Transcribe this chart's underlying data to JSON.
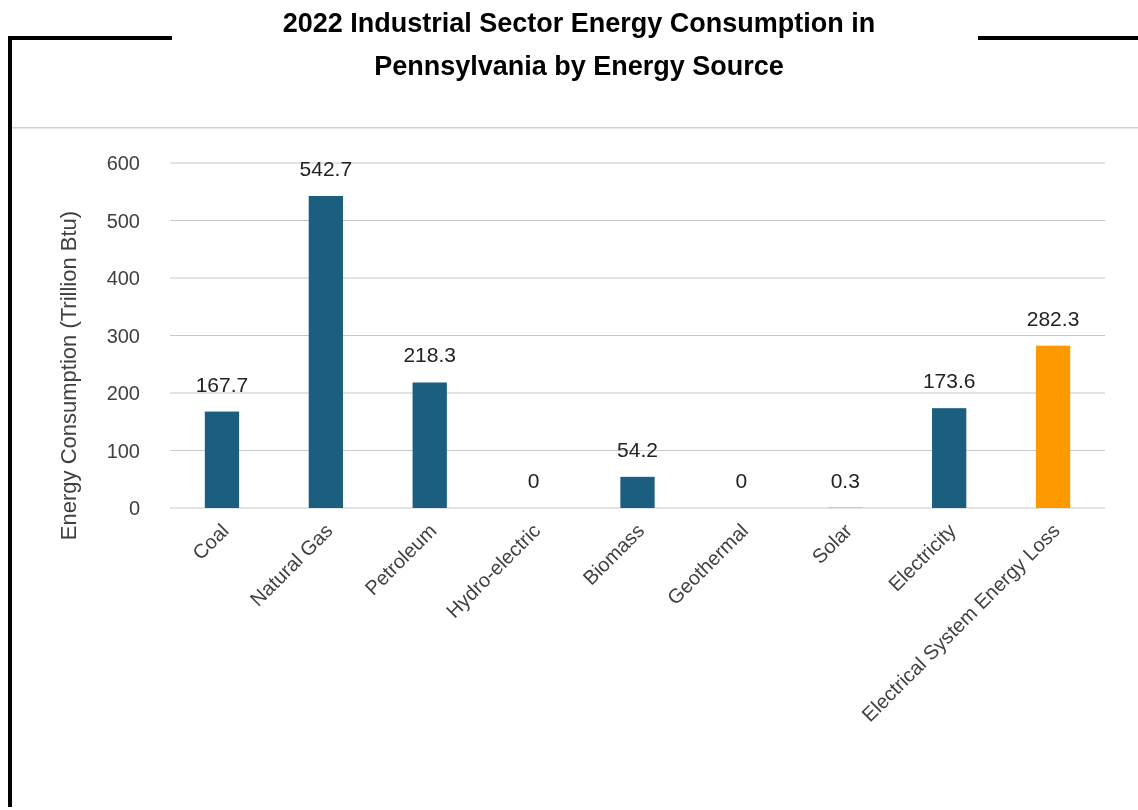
{
  "chart_data": {
    "type": "bar",
    "title": "2022 Industrial Sector Energy Consumption in Pennsylvania by Energy Source",
    "ylabel": "Energy Consumption (Trillion Btu)",
    "categories": [
      "Coal",
      "Natural Gas",
      "Petroleum",
      "Hydro-electric",
      "Biomass",
      "Geothermal",
      "Solar",
      "Electricity",
      "Electrical System Energy Loss"
    ],
    "values": [
      167.7,
      542.7,
      218.3,
      0,
      54.2,
      0,
      0.3,
      173.6,
      282.3
    ],
    "colors": [
      "#1b5e80",
      "#1b5e80",
      "#1b5e80",
      "#1b5e80",
      "#1b5e80",
      "#1b5e80",
      "#1b5e80",
      "#1b5e80",
      "#ff9900"
    ],
    "ylim": [
      0,
      600
    ],
    "yticks": [
      0,
      100,
      200,
      300,
      400,
      500,
      600
    ],
    "grid": "y",
    "data_labels": true
  }
}
